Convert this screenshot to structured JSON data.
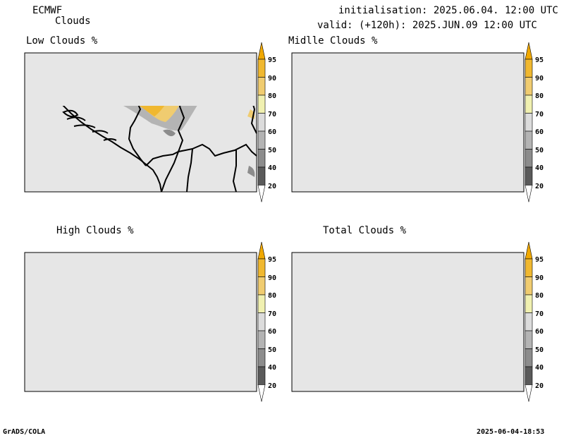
{
  "header": {
    "model": "ECMWF",
    "product": "Clouds",
    "initialisation": "initialisation: 2025.06.04. 12:00 UTC",
    "valid": "valid: (+120h): 2025.JUN.09 12:00 UTC"
  },
  "panels": [
    {
      "title": "Low Clouds %"
    },
    {
      "title": "Midlle Clouds %"
    },
    {
      "title": "High Clouds %"
    },
    {
      "title": "Total Clouds %"
    }
  ],
  "colorbar": {
    "levels": [
      "95",
      "90",
      "80",
      "70",
      "60",
      "50",
      "40",
      "20"
    ],
    "colors": [
      "#f0a800",
      "#f0b830",
      "#f0cc70",
      "#f0f0b0",
      "#dcdcdc",
      "#b4b4b4",
      "#8c8c8c",
      "#5a5a5a",
      "#ffffff"
    ]
  },
  "footer": {
    "left": "GrADS/COLA",
    "right": "2025-06-04-18:53"
  },
  "colors": {
    "land": "#e6e6e6",
    "cloud_dark": "#5a5a5a",
    "cloud_mid": "#8c8c8c",
    "cloud_light": "#b4b4b4",
    "cloud_yellow": "#f0b830",
    "cloud_orange": "#f0a800",
    "cloud_pale": "#f0f0b0"
  }
}
